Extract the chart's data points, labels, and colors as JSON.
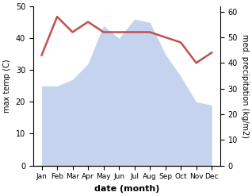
{
  "months": [
    "Jan",
    "Feb",
    "Mar",
    "Apr",
    "May",
    "Jun",
    "Jul",
    "Aug",
    "Sep",
    "Oct",
    "Nov",
    "Dec"
  ],
  "temperature": [
    43,
    58,
    52,
    56,
    52,
    52,
    52,
    52,
    50,
    48,
    40,
    44
  ],
  "precipitation": [
    25,
    25,
    27,
    32,
    44,
    40,
    46,
    45,
    35,
    28,
    20,
    19
  ],
  "temp_color": "#c0504d",
  "precip_color": "#c5d3ee",
  "left_ylabel": "max temp (C)",
  "right_ylabel": "med. precipitation (kg/m2)",
  "xlabel": "date (month)",
  "ylim_left": [
    0,
    50
  ],
  "ylim_right": [
    0,
    62
  ],
  "temp_linewidth": 1.8,
  "bg_color": "#ffffff",
  "left_yticks": [
    0,
    10,
    20,
    30,
    40,
    50
  ],
  "right_yticks": [
    0,
    10,
    20,
    30,
    40,
    50,
    60
  ]
}
